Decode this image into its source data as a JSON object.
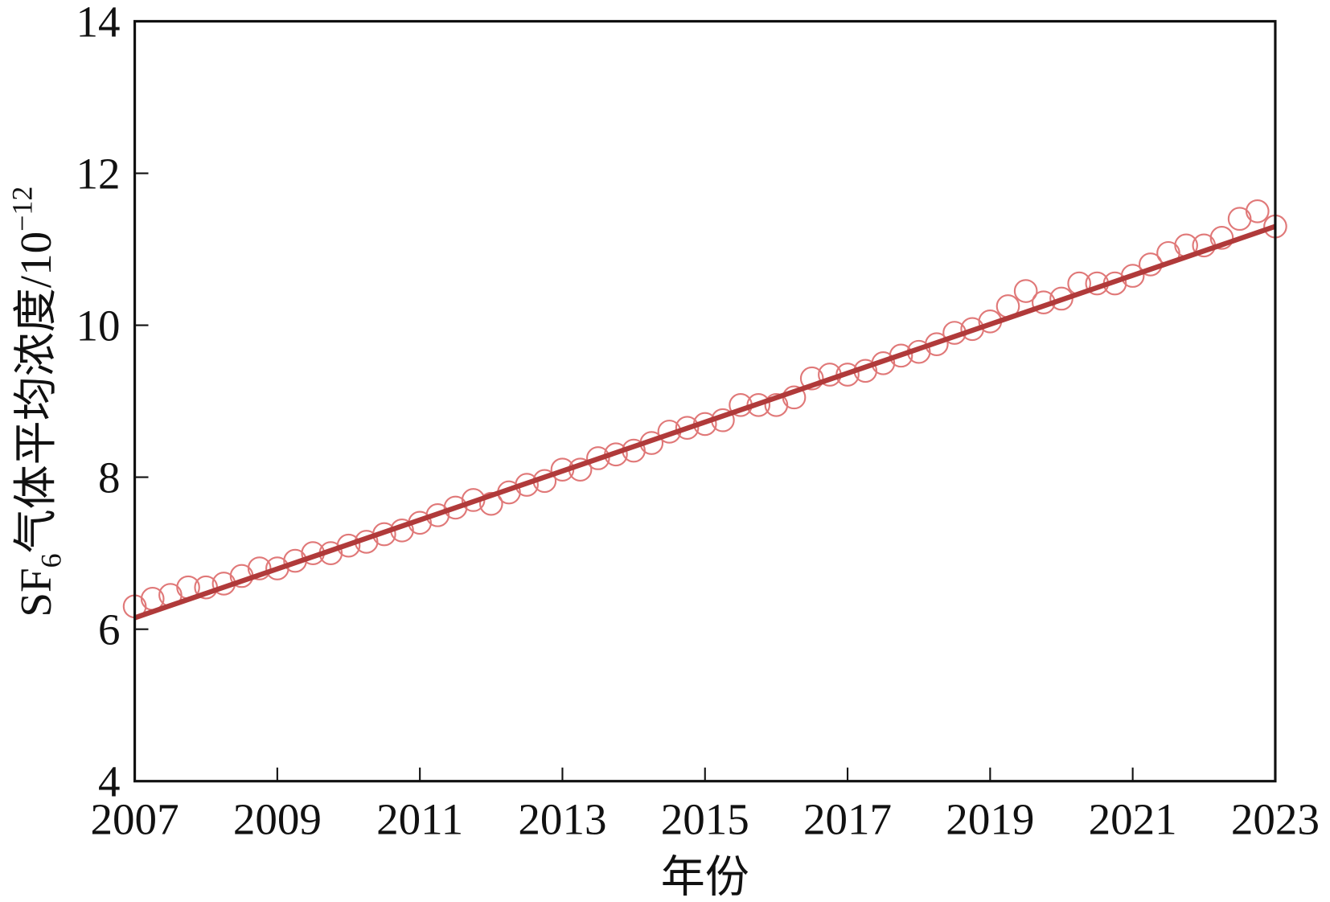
{
  "chart_data": {
    "type": "scatter",
    "x_label": "年份",
    "y_label": [
      "SF",
      "6",
      "气体平均浓度/10",
      "−12"
    ],
    "xlim": [
      2007,
      2023
    ],
    "xticks": [
      2007,
      2009,
      2011,
      2013,
      2015,
      2017,
      2019,
      2021,
      2023
    ],
    "ylim": [
      4,
      14
    ],
    "yticks": [
      4,
      6,
      8,
      10,
      12,
      14
    ],
    "series": [
      {
        "kind": "points",
        "color": "#e07878",
        "x": [
          2007.0,
          2007.25,
          2007.5,
          2007.75,
          2008.0,
          2008.25,
          2008.5,
          2008.75,
          2009.0,
          2009.25,
          2009.5,
          2009.75,
          2010.0,
          2010.25,
          2010.5,
          2010.75,
          2011.0,
          2011.25,
          2011.5,
          2011.75,
          2012.0,
          2012.25,
          2012.5,
          2012.75,
          2013.0,
          2013.25,
          2013.5,
          2013.75,
          2014.0,
          2014.25,
          2014.5,
          2014.75,
          2015.0,
          2015.25,
          2015.5,
          2015.75,
          2016.0,
          2016.25,
          2016.5,
          2016.75,
          2017.0,
          2017.25,
          2017.5,
          2017.75,
          2018.0,
          2018.25,
          2018.5,
          2018.75,
          2019.0,
          2019.25,
          2019.5,
          2019.75,
          2020.0,
          2020.25,
          2020.5,
          2020.75,
          2021.0,
          2021.25,
          2021.5,
          2021.75,
          2022.0,
          2022.25,
          2022.5,
          2022.75,
          2023.0
        ],
        "values": [
          6.3,
          6.4,
          6.45,
          6.55,
          6.55,
          6.6,
          6.7,
          6.8,
          6.8,
          6.9,
          7.0,
          7.0,
          7.1,
          7.15,
          7.25,
          7.3,
          7.4,
          7.5,
          7.6,
          7.7,
          7.65,
          7.8,
          7.9,
          7.95,
          8.1,
          8.1,
          8.25,
          8.3,
          8.35,
          8.45,
          8.6,
          8.65,
          8.7,
          8.75,
          8.95,
          8.95,
          8.95,
          9.05,
          9.3,
          9.35,
          9.35,
          9.4,
          9.5,
          9.6,
          9.65,
          9.75,
          9.9,
          9.95,
          10.05,
          10.25,
          10.45,
          10.3,
          10.35,
          10.55,
          10.55,
          10.55,
          10.65,
          10.8,
          10.95,
          11.05,
          11.05,
          11.15,
          11.4,
          11.5,
          11.3
        ]
      },
      {
        "kind": "line",
        "color": "#b03a3a",
        "x": [
          2007,
          2023
        ],
        "values": [
          6.15,
          11.3
        ]
      }
    ]
  }
}
